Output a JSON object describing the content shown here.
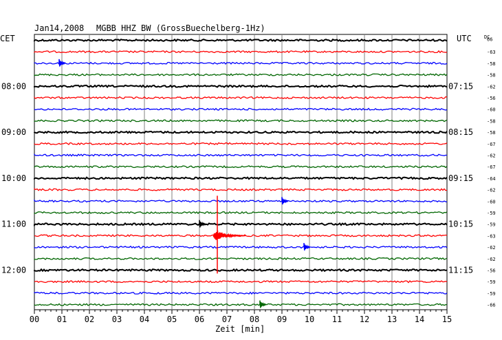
{
  "header": {
    "date": "Jan14,2008",
    "station": "MGBB HHZ BW (GrossBuechelberg-1Hz)",
    "left_zone": "CET",
    "right_zone": "UTC",
    "dc_label": "DC"
  },
  "footer": {
    "xlabel": "Zeit [min]"
  },
  "colors": {
    "trace_cycle": [
      "#000000",
      "#ff0000",
      "#0000ff",
      "#006600"
    ],
    "grid": "#808080"
  },
  "chart_data": {
    "type": "line",
    "title": "Jan14,2008   MGBB HHZ BW (GrossBuechelberg-1Hz)",
    "xlabel": "Zeit [min]",
    "xlim": [
      0,
      15
    ],
    "x_ticks": [
      "00",
      "01",
      "02",
      "03",
      "04",
      "05",
      "06",
      "07",
      "08",
      "09",
      "10",
      "11",
      "12",
      "13",
      "14",
      "15"
    ],
    "rows": 24,
    "minutes_per_row": 15,
    "left_hour_labels": [
      {
        "row": 4,
        "label": "08:00"
      },
      {
        "row": 8,
        "label": "09:00"
      },
      {
        "row": 12,
        "label": "10:00"
      },
      {
        "row": 16,
        "label": "11:00"
      },
      {
        "row": 20,
        "label": "12:00"
      }
    ],
    "right_hour_labels": [
      {
        "row": 4,
        "label": "07:15"
      },
      {
        "row": 8,
        "label": "08:15"
      },
      {
        "row": 12,
        "label": "09:15"
      },
      {
        "row": 16,
        "label": "10:15"
      },
      {
        "row": 20,
        "label": "11:15"
      }
    ],
    "dc_offsets": [
      "66",
      "-63",
      "-58",
      "-58",
      "-62",
      "-56",
      "-60",
      "-58",
      "-58",
      "-67",
      "-62",
      "-67",
      "-64",
      "-62",
      "-60",
      "-59",
      "-59",
      "-63",
      "-62",
      "-62",
      "-56",
      "-59",
      "-59",
      "-66"
    ],
    "events": [
      {
        "row": 2,
        "minute": 0.9,
        "amplitude": "small"
      },
      {
        "row": 14,
        "minute": 9.0,
        "amplitude": "small"
      },
      {
        "row": 16,
        "minute": 6.0,
        "amplitude": "small"
      },
      {
        "row": 17,
        "minute": 6.5,
        "amplitude": "large"
      },
      {
        "row": 18,
        "minute": 9.8,
        "amplitude": "small"
      },
      {
        "row": 23,
        "minute": 8.2,
        "amplitude": "small"
      }
    ]
  }
}
